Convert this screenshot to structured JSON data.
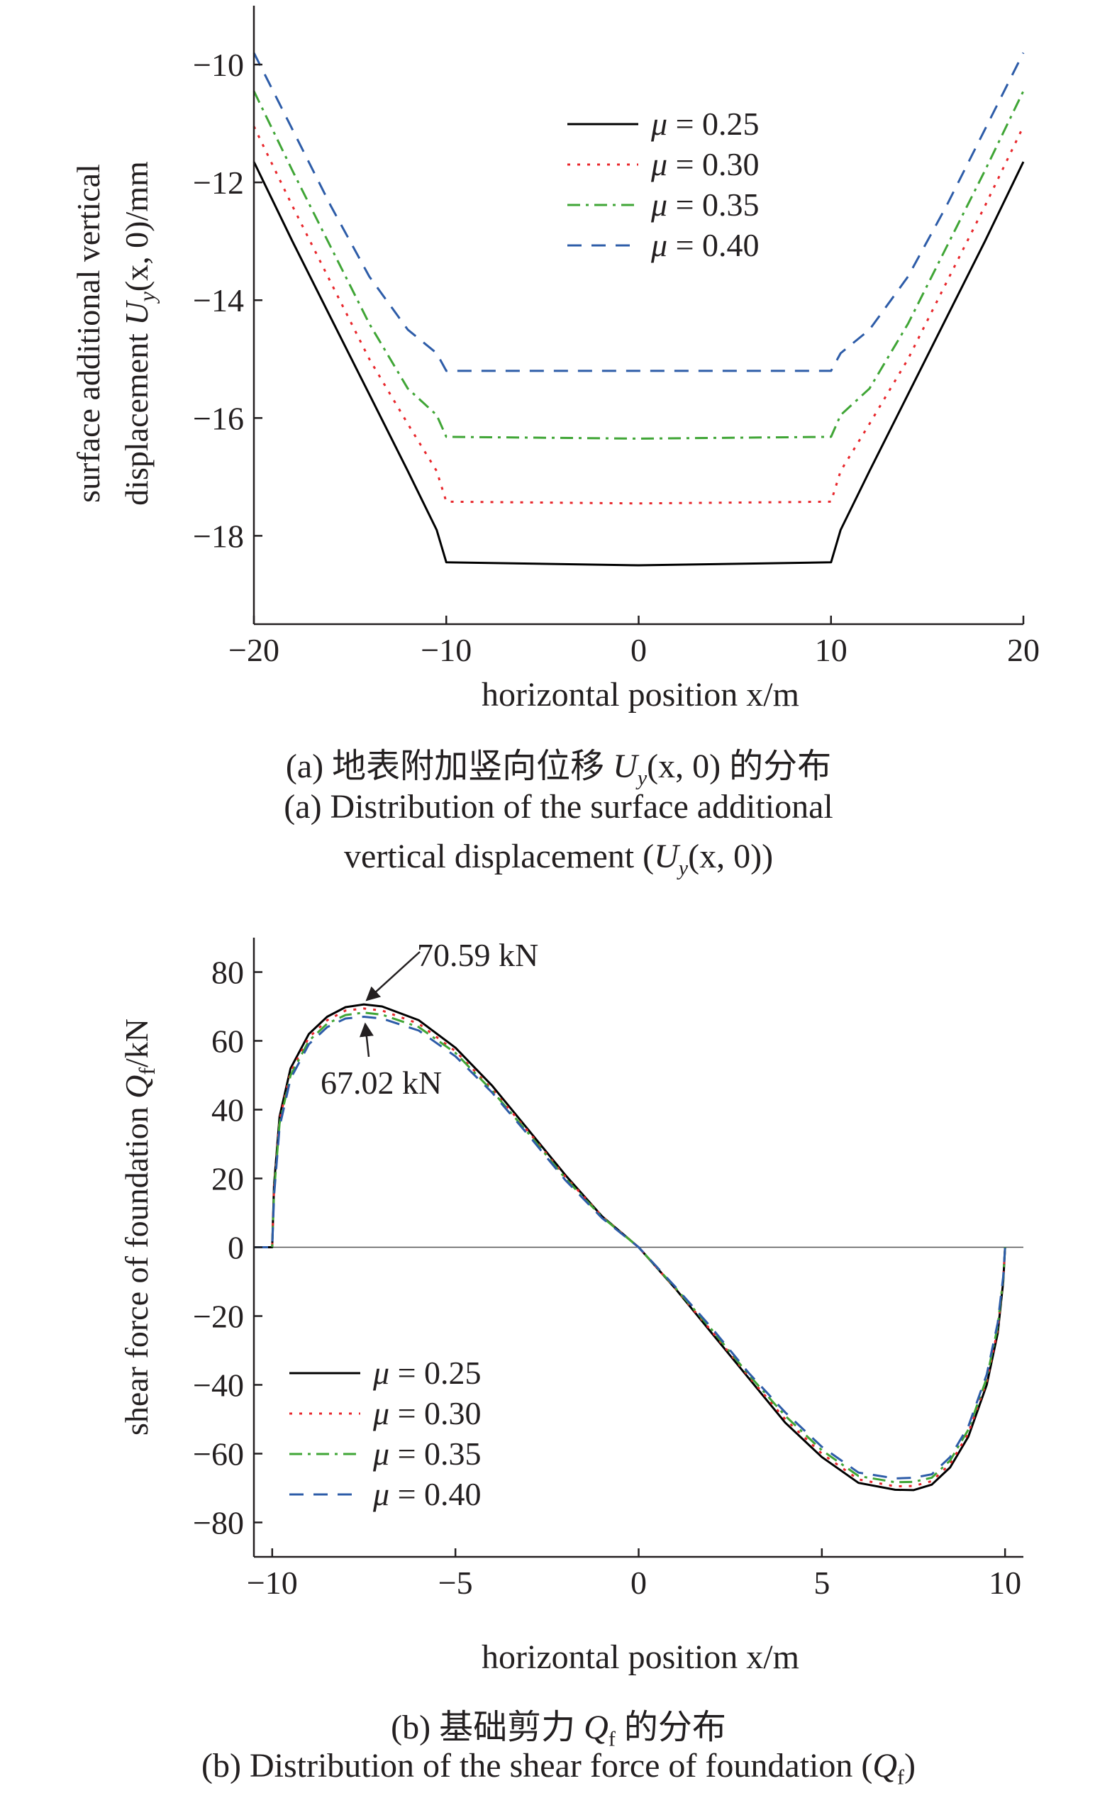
{
  "chart_data": [
    {
      "type": "line",
      "ylabel_line1": "surface additional vertical",
      "ylabel_line2_prefix": "displacement ",
      "ylabel_symbol": "U",
      "ylabel_subscript": "y",
      "ylabel_args": "(x, 0)/mm",
      "xlabel": "horizontal position x/m",
      "xlim": [
        -20,
        20
      ],
      "ylim": [
        -19.5,
        -9
      ],
      "xticks": [
        -20,
        -10,
        0,
        10,
        20
      ],
      "yticks": [
        -10,
        -12,
        -14,
        -16,
        -18
      ],
      "legend_position": "top-center",
      "x": [
        -20,
        -18,
        -16,
        -14,
        -12,
        -10.5,
        -10,
        0,
        10,
        10.5,
        12,
        14,
        16,
        18,
        20
      ],
      "series": [
        {
          "name": "μ = 0.25",
          "color": "#000000",
          "dash": "solid",
          "values": [
            -11.65,
            -13.0,
            -14.3,
            -15.6,
            -16.9,
            -17.9,
            -18.45,
            -18.5,
            -18.45,
            -17.9,
            -16.9,
            -15.6,
            -14.3,
            -13.0,
            -11.65
          ]
        },
        {
          "name": "μ = 0.30",
          "color": "#e8262b",
          "dash": "dot",
          "values": [
            -11.05,
            -12.4,
            -13.7,
            -15.0,
            -16.1,
            -16.9,
            -17.42,
            -17.45,
            -17.42,
            -16.9,
            -16.1,
            -15.0,
            -13.7,
            -12.4,
            -11.05
          ]
        },
        {
          "name": "μ = 0.35",
          "color": "#3fa535",
          "dash": "dashdot",
          "values": [
            -10.45,
            -11.8,
            -13.1,
            -14.4,
            -15.5,
            -15.95,
            -16.32,
            -16.35,
            -16.32,
            -15.95,
            -15.5,
            -14.4,
            -13.1,
            -11.8,
            -10.45
          ]
        },
        {
          "name": "μ = 0.40",
          "color": "#2d5ca8",
          "dash": "dash",
          "values": [
            -9.8,
            -11.1,
            -12.4,
            -13.6,
            -14.5,
            -14.9,
            -15.2,
            -15.2,
            -15.2,
            -14.9,
            -14.5,
            -13.6,
            -12.4,
            -11.1,
            -9.8
          ]
        }
      ]
    },
    {
      "type": "line",
      "ylabel_prefix": "shear force of foundation ",
      "ylabel_symbol": "Q",
      "ylabel_subscript": "f",
      "ylabel_suffix": "/kN",
      "xlabel": "horizontal position x/m",
      "xlim": [
        -10.5,
        10.5
      ],
      "ylim": [
        -90,
        90
      ],
      "xticks": [
        -10,
        -5,
        0,
        5,
        10
      ],
      "yticks": [
        80,
        60,
        40,
        20,
        0,
        -20,
        -40,
        -60,
        -80
      ],
      "legend_position": "bottom-left",
      "annotations": [
        "70.59 kN",
        "67.02 kN"
      ],
      "zero_line_x": [
        -10.5,
        10.5
      ],
      "x": [
        -10.5,
        -10,
        -9.95,
        -9.8,
        -9.5,
        -9,
        -8.5,
        -8,
        -7.5,
        -7,
        -6,
        -5,
        -4,
        -3,
        -2,
        -1,
        0,
        1,
        2,
        3,
        4,
        5,
        6,
        7,
        7.5,
        8,
        8.5,
        9,
        9.5,
        9.8,
        9.95,
        10
      ],
      "series": [
        {
          "name": "μ = 0.25",
          "color": "#000000",
          "dash": "solid",
          "values": [
            0,
            0,
            18,
            38,
            52,
            62,
            67,
            69.8,
            70.59,
            70,
            66,
            58,
            47,
            34,
            21,
            9,
            0,
            -12,
            -25,
            -38,
            -51,
            -61,
            -68.5,
            -70.5,
            -70.59,
            -69,
            -64,
            -55,
            -40,
            -25,
            -10,
            0
          ]
        },
        {
          "name": "μ = 0.30",
          "color": "#e8262b",
          "dash": "dot",
          "values": [
            0,
            0,
            17,
            37,
            51,
            61,
            66,
            68.8,
            69.4,
            68.8,
            65,
            57,
            46,
            33.5,
            20.5,
            9,
            0,
            -12,
            -24.5,
            -37.5,
            -50,
            -60,
            -67.5,
            -69.5,
            -69.4,
            -68,
            -63,
            -54,
            -39,
            -24,
            -9,
            0
          ]
        },
        {
          "name": "μ = 0.35",
          "color": "#3fa535",
          "dash": "dashdot",
          "values": [
            0,
            0,
            16,
            36,
            50,
            60,
            65,
            67.5,
            68.2,
            67.6,
            64,
            56.5,
            45.5,
            33,
            20,
            8.8,
            0,
            -11.8,
            -24,
            -37,
            -49,
            -59,
            -66.5,
            -68.3,
            -68.2,
            -67,
            -62,
            -53,
            -38,
            -23,
            -9,
            0
          ]
        },
        {
          "name": "μ = 0.40",
          "color": "#2d5ca8",
          "dash": "dash",
          "values": [
            0,
            0,
            15,
            35,
            49,
            59,
            64,
            66.5,
            67.02,
            66.5,
            63,
            55.5,
            45,
            32.5,
            19.5,
            8.5,
            0,
            -11.5,
            -23.5,
            -36.5,
            -48,
            -58,
            -65.5,
            -67.2,
            -67.02,
            -66,
            -61,
            -52,
            -37,
            -22,
            -8.5,
            0
          ]
        }
      ]
    }
  ],
  "captions": {
    "a_zh_pre": "(a) 地表附加竖向位移 ",
    "a_zh_sym": "U",
    "a_zh_sub": "y",
    "a_zh_args": "(x, 0)",
    "a_zh_post": " 的分布",
    "a_en_line1": "(a) Distribution of the surface additional",
    "a_en_line2_pre": "vertical displacement (",
    "a_en_line2_sym": "U",
    "a_en_line2_sub": "y",
    "a_en_line2_post": "(x, 0))",
    "b_zh_pre": "(b) 基础剪力 ",
    "b_zh_sym": "Q",
    "b_zh_sub": "f",
    "b_zh_post": " 的分布",
    "b_en_pre": "(b) Distribution of the shear force of foundation (",
    "b_en_sym": "Q",
    "b_en_sub": "f",
    "b_en_post": ")"
  }
}
